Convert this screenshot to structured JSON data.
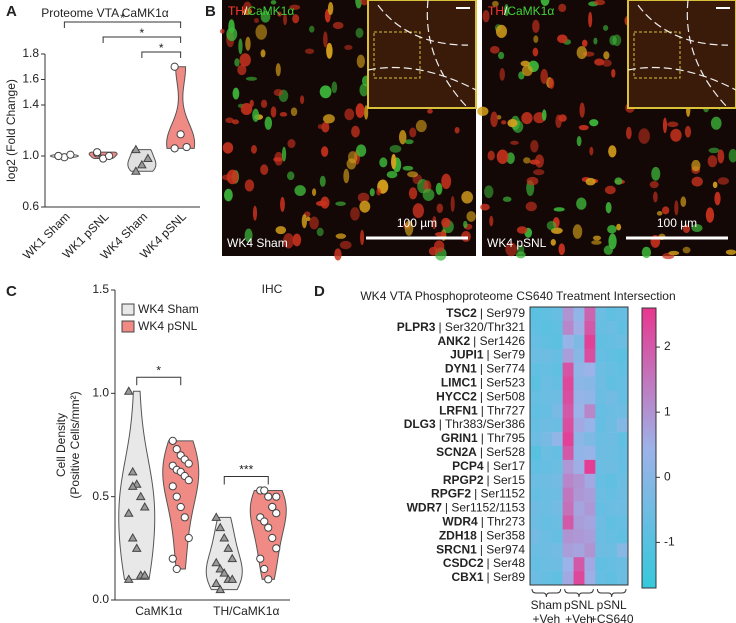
{
  "chart_data": [
    {
      "type": "violin",
      "panel": "A",
      "title": "Proteome VTA CaMK1α",
      "ylabel": "log2 (Fold Change)",
      "categories": [
        "WK1 Sham",
        "WK1 pSNL",
        "WK4 Sham",
        "WK4 pSNL"
      ],
      "values": [
        [
          1.0,
          0.99,
          1.01,
          1.0
        ],
        [
          1.02,
          0.98,
          1.0,
          1.03
        ],
        [
          1.05,
          0.93,
          0.98,
          0.88
        ],
        [
          1.7,
          1.17,
          1.07,
          1.06
        ]
      ],
      "colors": [
        "#f2f2f2",
        "#f08a84",
        "#e0e0e0",
        "#f08a84"
      ],
      "markers": [
        "circle",
        "circle",
        "triangle",
        "circle"
      ],
      "ylim": [
        0.6,
        1.8
      ],
      "yticks": [
        0.6,
        {
          "value": 1,
          "label": "1.0"
        },
        1.4,
        1.6,
        1.8
      ],
      "annotations": [
        {
          "text": "*",
          "categories": [
            0,
            3
          ]
        },
        {
          "text": "*",
          "categories": [
            1,
            3
          ]
        },
        {
          "text": "*",
          "categories": [
            2,
            3
          ]
        }
      ]
    },
    {
      "type": "violin",
      "panel": "C",
      "title": "IHC",
      "ylabel": [
        "Cell Density",
        "(Positive Cells/mm²)"
      ],
      "categories": [
        "CaMK1α",
        "TH/CaMK1α"
      ],
      "series": [
        {
          "name": "WK4 Sham",
          "color": "#e8e8e8",
          "marker": "triangle",
          "values": [
            [
              1.01,
              0.62,
              0.56,
              0.5,
              0.45,
              0.42,
              0.3,
              0.25,
              0.12,
              0.12,
              0.1,
              0.55
            ],
            [
              0.4,
              0.35,
              0.3,
              0.25,
              0.2,
              0.18,
              0.15,
              0.13,
              0.1,
              0.1,
              0.08,
              0.05
            ]
          ]
        },
        {
          "name": "WK4 pSNL",
          "color": "#f08a84",
          "marker": "circle",
          "values": [
            [
              0.77,
              0.73,
              0.7,
              0.68,
              0.66,
              0.65,
              0.63,
              0.62,
              0.6,
              0.58,
              0.55,
              0.5,
              0.45,
              0.4,
              0.3,
              0.2,
              0.15
            ],
            [
              0.53,
              0.53,
              0.5,
              0.45,
              0.42,
              0.4,
              0.38,
              0.35,
              0.3,
              0.25,
              0.2,
              0.15,
              0.1,
              0.45,
              0.5
            ]
          ]
        }
      ],
      "ylim": [
        0,
        1.5
      ],
      "yticks": [
        {
          "value": 0,
          "label": "0.0"
        },
        0.5,
        {
          "value": 1,
          "label": "1.0"
        },
        1.5
      ],
      "annotations": [
        {
          "text": "*",
          "category": 0
        },
        {
          "text": "***",
          "category": 1
        }
      ]
    },
    {
      "type": "heatmap",
      "panel": "D",
      "title": "WK4 VTA Phosphoproteome CS640 Treatment Intersection",
      "rows": [
        {
          "gene": "TSC2",
          "site": "| Ser979"
        },
        {
          "gene": "PLPR3",
          "site": "| Ser320/Thr321"
        },
        {
          "gene": "ANK2",
          "site": "| Ser1426"
        },
        {
          "gene": "JUPI1",
          "site": "| Ser79"
        },
        {
          "gene": "DYN1",
          "site": "| Ser774"
        },
        {
          "gene": "LIMC1",
          "site": "| Ser523"
        },
        {
          "gene": "HYCC2",
          "site": "| Ser508"
        },
        {
          "gene": "LRFN1",
          "site": "| Thr727"
        },
        {
          "gene": "DLG3",
          "site": "| Thr383/Ser386"
        },
        {
          "gene": "GRIN1",
          "site": "| Thr795"
        },
        {
          "gene": "SCN2A",
          "site": "| Ser528"
        },
        {
          "gene": "PCP4",
          "site": "| Ser17"
        },
        {
          "gene": "RPGP2",
          "site": "| Ser15"
        },
        {
          "gene": "RPGF2",
          "site": "| Ser1152"
        },
        {
          "gene": "WDR7",
          "site": "| Ser1152/1153"
        },
        {
          "gene": "WDR4",
          "site": "| Thr273"
        },
        {
          "gene": "ZDH18",
          "site": "| Ser358"
        },
        {
          "gene": "SRCN1",
          "site": "| Ser974"
        },
        {
          "gene": "CSDC2",
          "site": "| Ser48"
        },
        {
          "gene": "CBX1",
          "site": "| Ser89"
        }
      ],
      "column_groups": [
        [
          "Sham",
          "+Veh"
        ],
        [
          "pSNL",
          "+Veh"
        ],
        [
          "pSNL",
          "+CS640"
        ]
      ],
      "values": [
        [
          -0.9,
          -0.8,
          -0.7,
          1.0,
          0.2,
          1.8,
          -0.6,
          -0.8,
          -0.7
        ],
        [
          -0.8,
          -0.9,
          -0.8,
          1.2,
          0.5,
          2.0,
          -0.7,
          -0.6,
          -0.8
        ],
        [
          -0.7,
          -0.8,
          -0.9,
          0.3,
          -0.2,
          2.4,
          -0.8,
          -0.7,
          -0.6
        ],
        [
          -0.6,
          -0.5,
          -0.7,
          0.8,
          0.0,
          2.2,
          -0.7,
          -0.8,
          -0.9
        ],
        [
          -0.8,
          -0.7,
          -0.8,
          2.1,
          0.2,
          0.4,
          -0.6,
          -0.7,
          -0.8
        ],
        [
          -0.9,
          -0.6,
          -0.7,
          2.3,
          0.1,
          0.0,
          -0.5,
          -0.8,
          -0.7
        ],
        [
          -0.7,
          -0.6,
          -0.5,
          2.2,
          0.3,
          0.2,
          -0.6,
          -0.4,
          -0.7
        ],
        [
          -0.8,
          -0.7,
          -0.3,
          2.0,
          0.4,
          1.2,
          -0.7,
          -0.6,
          -0.5
        ],
        [
          -0.7,
          -0.5,
          -0.6,
          2.2,
          0.6,
          0.3,
          -0.7,
          -0.5,
          -0.1
        ],
        [
          -0.6,
          -0.3,
          0.2,
          2.4,
          0.1,
          -0.2,
          -0.6,
          -0.5,
          -0.8
        ],
        [
          -1.0,
          -0.6,
          -0.7,
          2.0,
          0.2,
          0.3,
          -0.5,
          -0.6,
          -0.7
        ],
        [
          -0.8,
          -0.7,
          -0.6,
          0.9,
          0.5,
          2.5,
          -0.6,
          -0.5,
          -0.7
        ],
        [
          -0.6,
          -0.5,
          -0.4,
          1.2,
          1.0,
          0.6,
          -0.7,
          -0.8,
          -0.6
        ],
        [
          -0.7,
          -0.6,
          -0.5,
          1.5,
          0.9,
          0.8,
          -0.6,
          -0.7,
          -0.5
        ],
        [
          -0.5,
          -0.6,
          -0.4,
          1.6,
          0.7,
          0.9,
          -0.7,
          -0.6,
          -0.5
        ],
        [
          -0.6,
          -0.7,
          -0.6,
          2.0,
          0.8,
          0.7,
          -0.5,
          -0.8,
          -0.7
        ],
        [
          -0.4,
          -0.6,
          -0.7,
          1.0,
          0.9,
          0.8,
          -0.6,
          -0.7,
          -0.8
        ],
        [
          -0.6,
          -0.5,
          -0.4,
          0.8,
          0.7,
          1.0,
          -0.5,
          -0.6,
          0.0
        ],
        [
          -0.7,
          -0.6,
          -0.5,
          0.4,
          2.0,
          0.6,
          -0.8,
          -0.7,
          -0.6
        ],
        [
          -0.6,
          -0.7,
          -0.8,
          0.6,
          2.3,
          0.5,
          -0.7,
          -0.8,
          -0.6
        ]
      ],
      "zlim": [
        -1.7,
        2.6
      ],
      "zticks": [
        -1,
        0,
        1,
        2
      ],
      "colorscale": [
        "#36c8dc",
        "#9db2e8",
        "#e8378f"
      ]
    }
  ],
  "images_panel": {
    "panel": "B",
    "stain": [
      "TH",
      "/",
      "CaMK1α"
    ],
    "stain_colors": [
      "#ff3b2f",
      "#ffffff",
      "#3fd43a"
    ],
    "images": [
      {
        "label": "WK4 Sham",
        "scale_bar": "100 µm"
      },
      {
        "label": "WK4 pSNL",
        "scale_bar": "100 µm"
      }
    ]
  }
}
